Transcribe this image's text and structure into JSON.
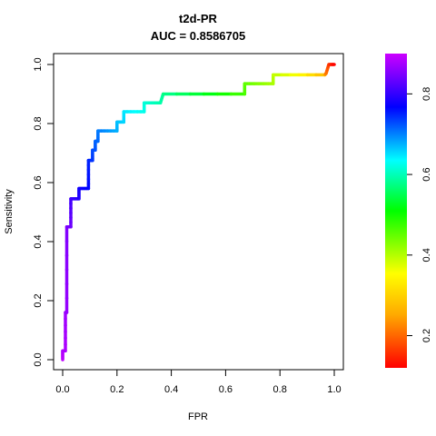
{
  "chart_data": {
    "type": "line",
    "title": "t2d-PR",
    "subtitle": "AUC = 0.8586705",
    "xlabel": "FPR",
    "ylabel": "Sensitivity",
    "xlim": [
      0,
      1
    ],
    "ylim": [
      0,
      1
    ],
    "x_ticks": [
      "0.0",
      "0.2",
      "0.4",
      "0.6",
      "0.8",
      "1.0"
    ],
    "y_ticks": [
      "0.0",
      "0.2",
      "0.4",
      "0.6",
      "0.8",
      "1.0"
    ],
    "grid": false,
    "colorbar": {
      "scale": "rainbow",
      "range": [
        0.12,
        0.9
      ],
      "ticks": [
        "0.2",
        "0.4",
        "0.6",
        "0.8"
      ],
      "tick_values": [
        0.2,
        0.4,
        0.6,
        0.8
      ]
    },
    "curve": [
      {
        "x": 0.0,
        "y": 0.0,
        "t": 0.9
      },
      {
        "x": 0.0,
        "y": 0.03,
        "t": 0.89
      },
      {
        "x": 0.01,
        "y": 0.03,
        "t": 0.888
      },
      {
        "x": 0.01,
        "y": 0.16,
        "t": 0.88
      },
      {
        "x": 0.015,
        "y": 0.16,
        "t": 0.875
      },
      {
        "x": 0.015,
        "y": 0.45,
        "t": 0.86
      },
      {
        "x": 0.03,
        "y": 0.45,
        "t": 0.85
      },
      {
        "x": 0.03,
        "y": 0.545,
        "t": 0.82
      },
      {
        "x": 0.06,
        "y": 0.545,
        "t": 0.8
      },
      {
        "x": 0.06,
        "y": 0.58,
        "t": 0.79
      },
      {
        "x": 0.095,
        "y": 0.58,
        "t": 0.775
      },
      {
        "x": 0.095,
        "y": 0.675,
        "t": 0.755
      },
      {
        "x": 0.11,
        "y": 0.675,
        "t": 0.745
      },
      {
        "x": 0.11,
        "y": 0.71,
        "t": 0.73
      },
      {
        "x": 0.12,
        "y": 0.71,
        "t": 0.725
      },
      {
        "x": 0.12,
        "y": 0.74,
        "t": 0.715
      },
      {
        "x": 0.13,
        "y": 0.74,
        "t": 0.71
      },
      {
        "x": 0.13,
        "y": 0.775,
        "t": 0.7
      },
      {
        "x": 0.2,
        "y": 0.775,
        "t": 0.665
      },
      {
        "x": 0.2,
        "y": 0.805,
        "t": 0.655
      },
      {
        "x": 0.225,
        "y": 0.805,
        "t": 0.64
      },
      {
        "x": 0.225,
        "y": 0.84,
        "t": 0.63
      },
      {
        "x": 0.3,
        "y": 0.84,
        "t": 0.6
      },
      {
        "x": 0.3,
        "y": 0.87,
        "t": 0.59
      },
      {
        "x": 0.36,
        "y": 0.87,
        "t": 0.56
      },
      {
        "x": 0.37,
        "y": 0.9,
        "t": 0.545
      },
      {
        "x": 0.67,
        "y": 0.9,
        "t": 0.4
      },
      {
        "x": 0.67,
        "y": 0.935,
        "t": 0.39
      },
      {
        "x": 0.775,
        "y": 0.935,
        "t": 0.34
      },
      {
        "x": 0.775,
        "y": 0.965,
        "t": 0.33
      },
      {
        "x": 0.965,
        "y": 0.965,
        "t": 0.24
      },
      {
        "x": 0.97,
        "y": 0.97,
        "t": 0.2
      },
      {
        "x": 0.98,
        "y": 1.0,
        "t": 0.16
      },
      {
        "x": 1.0,
        "y": 1.0,
        "t": 0.12
      }
    ]
  }
}
